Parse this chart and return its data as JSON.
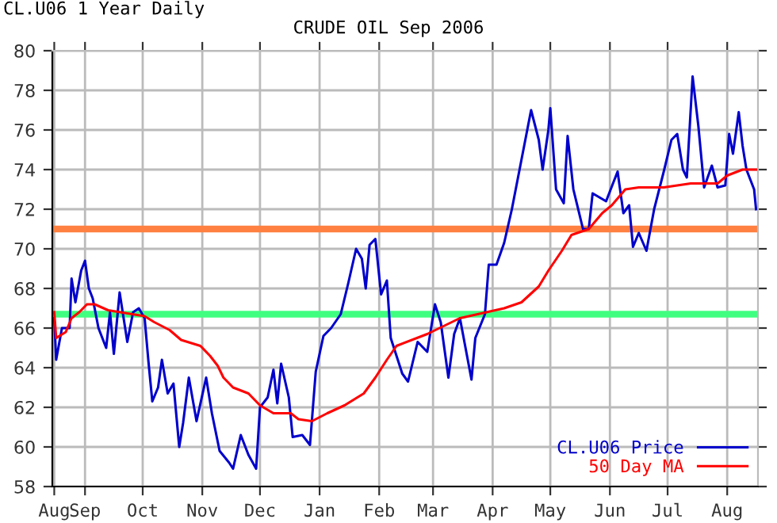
{
  "chart_data": {
    "type": "line",
    "title": "CRUDE OIL Sep 2006",
    "subtitle": "CL.U06 1 Year Daily",
    "series": [
      {
        "name": "CL.U06 Price",
        "color": "#0000cc",
        "x": [
          "2005-08-16",
          "2005-08-17",
          "2005-08-20",
          "2005-08-24",
          "2005-08-25",
          "2005-08-27",
          "2005-08-30",
          "2005-09-01",
          "2005-09-03",
          "2005-09-05",
          "2005-09-08",
          "2005-09-10",
          "2005-09-12",
          "2005-09-14",
          "2005-09-16",
          "2005-09-19",
          "2005-09-23",
          "2005-09-26",
          "2005-09-29",
          "2005-10-02",
          "2005-10-04",
          "2005-10-06",
          "2005-10-09",
          "2005-10-11",
          "2005-10-14",
          "2005-10-17",
          "2005-10-20",
          "2005-10-22",
          "2005-10-25",
          "2005-10-29",
          "2005-11-03",
          "2005-11-06",
          "2005-11-10",
          "2005-11-15",
          "2005-11-17",
          "2005-11-21",
          "2005-11-25",
          "2005-11-29",
          "2005-12-01",
          "2005-12-05",
          "2005-12-08",
          "2005-12-10",
          "2005-12-12",
          "2005-12-16",
          "2005-12-18",
          "2005-12-23",
          "2005-12-27",
          "2005-12-30",
          "2006-01-03",
          "2006-01-07",
          "2006-01-12",
          "2006-01-16",
          "2006-01-20",
          "2006-01-23",
          "2006-01-25",
          "2006-01-27",
          "2006-01-30",
          "2006-02-02",
          "2006-02-05",
          "2006-02-07",
          "2006-02-13",
          "2006-02-16",
          "2006-02-21",
          "2006-02-26",
          "2006-03-02",
          "2006-03-05",
          "2006-03-09",
          "2006-03-12",
          "2006-03-15",
          "2006-03-21",
          "2006-03-23",
          "2006-03-28",
          "2006-03-30",
          "2006-04-03",
          "2006-04-07",
          "2006-04-11",
          "2006-04-15",
          "2006-04-19",
          "2006-04-21",
          "2006-04-25",
          "2006-04-27",
          "2006-04-30",
          "2006-05-01",
          "2006-05-04",
          "2006-05-08",
          "2006-05-10",
          "2006-05-13",
          "2006-05-18",
          "2006-05-21",
          "2006-05-23",
          "2006-05-30",
          "2006-06-05",
          "2006-06-08",
          "2006-06-11",
          "2006-06-13",
          "2006-06-16",
          "2006-06-20",
          "2006-06-24",
          "2006-06-29",
          "2006-07-03",
          "2006-07-06",
          "2006-07-09",
          "2006-07-11",
          "2006-07-14",
          "2006-07-17",
          "2006-07-20",
          "2006-07-24",
          "2006-07-27",
          "2006-07-31",
          "2006-08-02",
          "2006-08-04",
          "2006-08-07",
          "2006-08-09",
          "2006-08-11",
          "2006-08-15",
          "2006-08-16"
        ],
        "values": [
          66.5,
          64.4,
          66,
          66,
          68.5,
          67.3,
          68.9,
          69.4,
          68,
          67.5,
          66,
          65.5,
          65,
          66.8,
          64.7,
          67.8,
          65.3,
          66.8,
          67,
          66.5,
          64.3,
          62.3,
          63,
          64.4,
          62.7,
          63.2,
          60,
          61.2,
          63.5,
          61.3,
          63.5,
          61.7,
          59.8,
          59.2,
          58.9,
          60.6,
          59.6,
          58.9,
          62,
          62.5,
          63.9,
          62.2,
          64.2,
          62.5,
          60.5,
          60.6,
          60.1,
          63.8,
          65.6,
          66,
          66.7,
          68.3,
          70,
          69.5,
          68,
          70.2,
          70.5,
          67.7,
          68.4,
          65.5,
          63.7,
          63.3,
          65.3,
          64.8,
          67.2,
          66.3,
          63.5,
          65.7,
          66.5,
          63.4,
          65.5,
          66.7,
          69.2,
          69.2,
          70.3,
          72,
          74,
          76,
          77,
          75.5,
          74,
          76,
          77.1,
          73,
          72.3,
          75.7,
          73,
          71,
          71,
          72.8,
          72.4,
          73.9,
          71.8,
          72.2,
          70.1,
          70.8,
          69.9,
          72,
          73.9,
          75.5,
          75.8,
          74,
          73.6,
          78.7,
          76.2,
          73.1,
          74.2,
          73.1,
          73.2,
          75.8,
          74.8,
          76.9,
          75.2,
          74,
          73,
          72
        ]
      },
      {
        "name": "50 Day MA",
        "color": "#ff0000",
        "x": [
          "2005-08-16",
          "2005-08-17",
          "2005-08-22",
          "2005-08-25",
          "2005-08-29",
          "2005-09-02",
          "2005-09-06",
          "2005-09-13",
          "2005-10-02",
          "2005-10-07",
          "2005-10-15",
          "2005-10-21",
          "2005-10-31",
          "2005-11-05",
          "2005-11-09",
          "2005-11-12",
          "2005-11-17",
          "2005-11-25",
          "2005-12-01",
          "2005-12-08",
          "2005-12-17",
          "2005-12-21",
          "2005-12-28",
          "2006-01-05",
          "2006-01-14",
          "2006-01-24",
          "2006-01-30",
          "2006-02-05",
          "2006-02-10",
          "2006-02-26",
          "2006-03-15",
          "2006-04-07",
          "2006-04-16",
          "2006-04-25",
          "2006-04-30",
          "2006-05-07",
          "2006-05-12",
          "2006-05-21",
          "2006-05-28",
          "2006-06-02",
          "2006-06-09",
          "2006-06-16",
          "2006-06-29",
          "2006-07-13",
          "2006-07-27",
          "2006-08-01",
          "2006-08-09",
          "2006-08-16"
        ],
        "values": [
          66.8,
          65.5,
          65.8,
          66.5,
          66.8,
          67.2,
          67.2,
          66.9,
          66.6,
          66.3,
          65.9,
          65.4,
          65.1,
          64.6,
          64.1,
          63.5,
          63,
          62.7,
          62.1,
          61.7,
          61.7,
          61.4,
          61.3,
          61.7,
          62.1,
          62.7,
          63.5,
          64.4,
          65.1,
          65.7,
          66.5,
          67,
          67.3,
          68.1,
          68.9,
          69.9,
          70.7,
          71,
          71.8,
          72.2,
          73,
          73.1,
          73.1,
          73.3,
          73.3,
          73.7,
          74,
          74
        ]
      }
    ],
    "ref_lines": [
      {
        "axis": "y",
        "value": 71,
        "color": "#ff8040"
      },
      {
        "axis": "y",
        "value": 66.7,
        "color": "#40ff80"
      }
    ],
    "xlim": [
      "2005-08-15",
      "2006-08-17"
    ],
    "xticks": [
      {
        "value": "2005-08-16",
        "label": "Aug"
      },
      {
        "value": "2005-09-01",
        "label": "Sep"
      },
      {
        "value": "2005-10-01",
        "label": "Oct"
      },
      {
        "value": "2005-11-01",
        "label": "Nov"
      },
      {
        "value": "2005-12-01",
        "label": "Dec"
      },
      {
        "value": "2006-01-01",
        "label": "Jan"
      },
      {
        "value": "2006-02-01",
        "label": "Feb"
      },
      {
        "value": "2006-03-01",
        "label": "Mar"
      },
      {
        "value": "2006-04-01",
        "label": "Apr"
      },
      {
        "value": "2006-05-01",
        "label": "May"
      },
      {
        "value": "2006-06-01",
        "label": "Jun"
      },
      {
        "value": "2006-07-01",
        "label": "Jul"
      },
      {
        "value": "2006-08-01",
        "label": "Aug"
      }
    ],
    "ylim": [
      58,
      80
    ],
    "yticks": [
      58,
      60,
      62,
      64,
      66,
      68,
      70,
      72,
      74,
      76,
      78,
      80
    ],
    "grid": true,
    "legend": "bottom right",
    "marker": "none",
    "line_style": "solid"
  }
}
